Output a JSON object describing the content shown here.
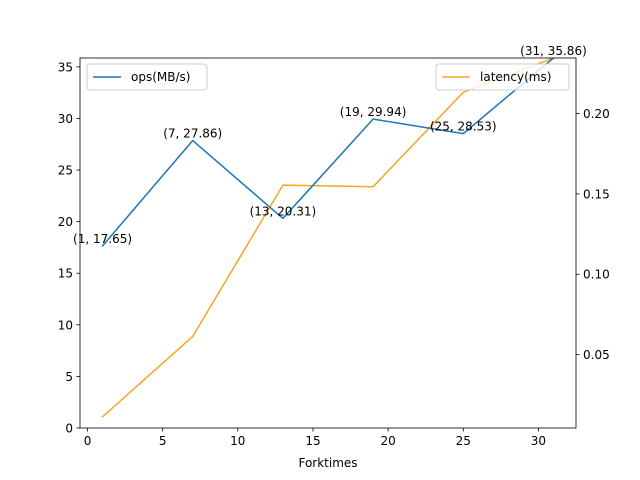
{
  "chart_data": {
    "type": "line",
    "title": "",
    "xlabel": "Forktimes",
    "ylabel_left": "",
    "ylabel_right": "",
    "xlim": [
      -0.5,
      32.5
    ],
    "ylim_left": [
      0,
      35.86
    ],
    "ylim_right": [
      0.0043,
      0.2346
    ],
    "x_ticks": [
      0,
      5,
      10,
      15,
      20,
      25,
      30
    ],
    "y_left_ticks": [
      0,
      5,
      10,
      15,
      20,
      25,
      30,
      35
    ],
    "y_right_ticks": [
      0.05,
      0.1,
      0.15,
      0.2
    ],
    "grid": false,
    "series": [
      {
        "name": "ops(MB/s)",
        "axis": "left",
        "color": "#1f77b4",
        "x": [
          1,
          7,
          13,
          19,
          25,
          31
        ],
        "values": [
          17.65,
          27.86,
          20.31,
          29.94,
          28.53,
          35.86
        ],
        "data_labels": [
          "(1, 17.65)",
          "(7, 27.86)",
          "(13, 20.31)",
          "(19, 29.94)",
          "(25, 28.53)",
          "(31, 35.86)"
        ],
        "legend_position": "upper-left"
      },
      {
        "name": "latency(ms)",
        "axis": "right",
        "color": "#f5a623",
        "x": [
          1,
          7,
          13,
          19,
          25,
          31
        ],
        "values": [
          0.0113,
          0.0613,
          0.1555,
          0.1545,
          0.2133,
          0.2346
        ],
        "legend_position": "upper-right"
      }
    ]
  }
}
